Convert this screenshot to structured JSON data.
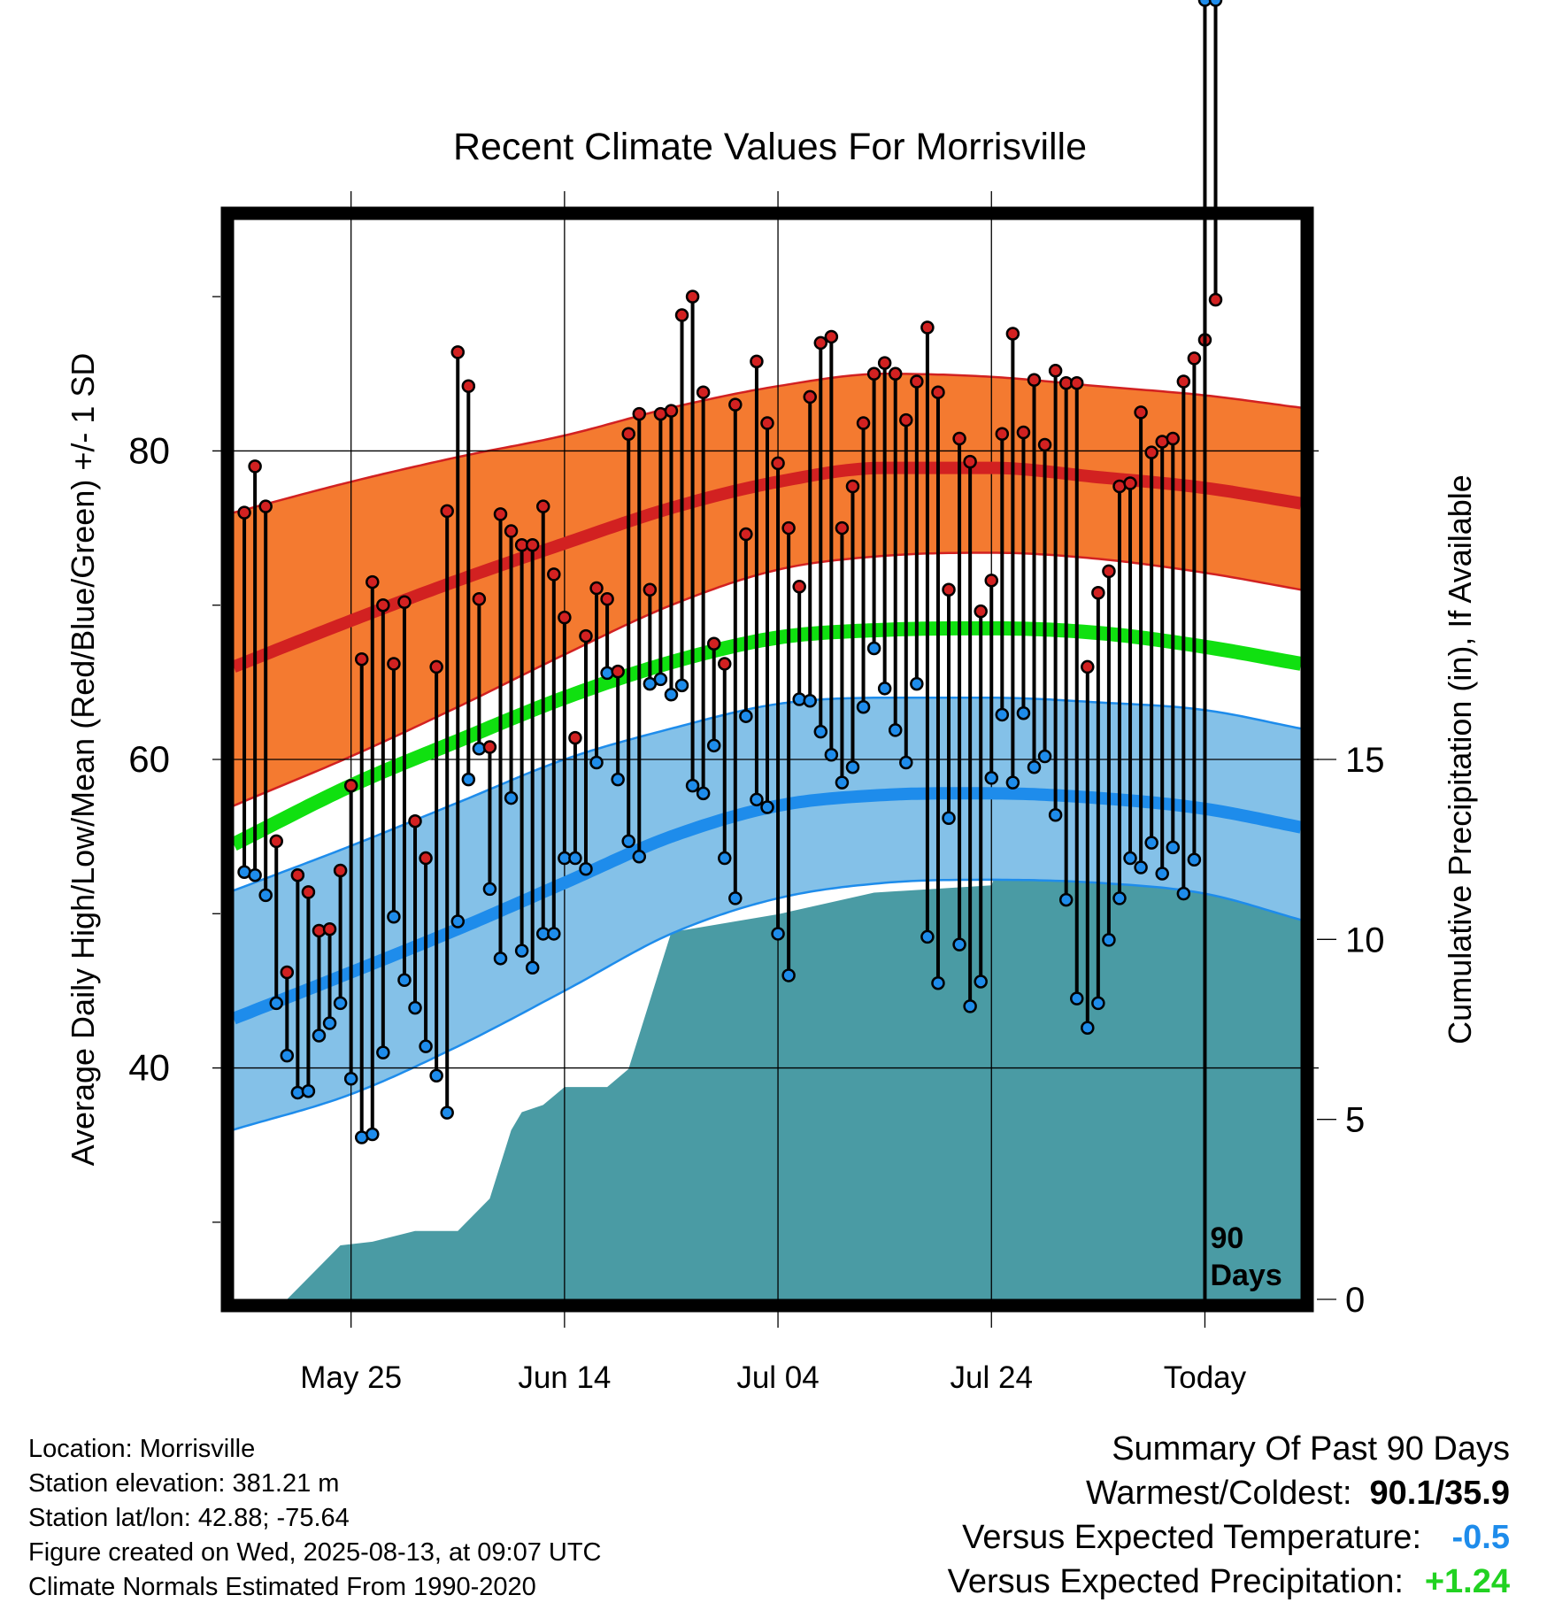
{
  "chart_data": {
    "type": "line",
    "title": "Recent Climate Values For Morrisville",
    "xlabel": "Day",
    "ylabel": "Average Daily High/Low/Mean (Red/Blue/Green) +/- 1 SD",
    "y2label": "Cumulative Precipitation (in), If Available",
    "x_tick_labels": [
      "May 25",
      "Jun 14",
      "Jul 04",
      "Jul 24",
      "Today"
    ],
    "x_range_days": [
      -91,
      9
    ],
    "x_tick_days": [
      -80,
      -60,
      -40,
      -20,
      0
    ],
    "ylim": [
      25,
      95
    ],
    "y_ticks": [
      40,
      60,
      80
    ],
    "y_minor_ticks": [
      30,
      50,
      70,
      90
    ],
    "y2lim": [
      0,
      30
    ],
    "y2_ticks": [
      0,
      5,
      10,
      15
    ],
    "grid": true,
    "today_marker_label": [
      "90",
      "Days"
    ],
    "normals": {
      "day": [
        -91,
        -80,
        -70,
        -60,
        -50,
        -40,
        -30,
        -20,
        -10,
        0,
        9
      ],
      "high_mean": [
        66.0,
        69.0,
        71.6,
        74.0,
        76.3,
        78.0,
        78.9,
        78.9,
        78.3,
        77.6,
        76.6
      ],
      "high_upper": [
        76.0,
        78.0,
        79.6,
        81.0,
        82.8,
        84.2,
        85.0,
        84.8,
        84.2,
        83.6,
        82.8
      ],
      "high_lower": [
        57.0,
        60.2,
        63.4,
        66.8,
        70.0,
        72.3,
        73.2,
        73.4,
        73.0,
        72.1,
        71.0
      ],
      "mean_mean": [
        54.5,
        58.3,
        61.2,
        64.0,
        66.3,
        67.9,
        68.4,
        68.5,
        68.2,
        67.3,
        66.2
      ],
      "low_mean": [
        43.2,
        46.2,
        49.0,
        52.0,
        55.0,
        57.0,
        57.7,
        57.8,
        57.5,
        56.8,
        55.6
      ],
      "low_upper": [
        51.5,
        54.4,
        57.2,
        60.0,
        62.0,
        63.6,
        64.0,
        64.0,
        63.7,
        63.2,
        62.0
      ],
      "low_lower": [
        36.0,
        38.3,
        41.4,
        45.0,
        48.7,
        51.0,
        52.0,
        52.2,
        52.0,
        51.3,
        49.6
      ]
    },
    "series": [
      {
        "name": "High",
        "color": "#d22121",
        "values": [
          76,
          79,
          76.4,
          54.7,
          46.2,
          52.5,
          51.4,
          48.9,
          49,
          52.8,
          58.3,
          66.5,
          71.5,
          70,
          66.2,
          70.2,
          56,
          53.6,
          66,
          76.1,
          86.4,
          84.2,
          70.4,
          60.8,
          75.9,
          74.8,
          73.9,
          73.9,
          76.4,
          72,
          69.2,
          61.4,
          68,
          71.1,
          70.4,
          65.7,
          81.1,
          82.4,
          71,
          82.4,
          82.6,
          88.8,
          90,
          83.8,
          67.5,
          66.2,
          83,
          74.6,
          85.8,
          81.8,
          79.2,
          75,
          71.2,
          83.5,
          87,
          87.4,
          75,
          77.7,
          81.8,
          85,
          85.7,
          85,
          82,
          84.5,
          88,
          83.8,
          71,
          80.8,
          79.3,
          69.6,
          71.6,
          81.1,
          87.6,
          81.2,
          84.6,
          80.4,
          85.2,
          84.4,
          84.4,
          66,
          70.8,
          72.2,
          77.7,
          77.9,
          82.5,
          79.9,
          80.6,
          80.8,
          84.5,
          86,
          87.2,
          89.8
        ]
      },
      {
        "name": "Low",
        "color": "#1e8ceb",
        "values": [
          52.7,
          52.5,
          51.2,
          44.2,
          40.8,
          38.4,
          38.5,
          42.1,
          42.9,
          44.2,
          39.3,
          35.5,
          35.7,
          41,
          49.8,
          45.7,
          43.9,
          41.4,
          39.5,
          37.1,
          49.5,
          58.7,
          60.7,
          51.6,
          47.1,
          57.5,
          47.6,
          46.5,
          48.7,
          48.7,
          53.6,
          53.6,
          52.9,
          59.8,
          65.6,
          58.7,
          54.7,
          53.7,
          64.9,
          65.2,
          64.2,
          64.8,
          58.3,
          57.8,
          60.9,
          53.6,
          51,
          62.8,
          57.4,
          56.9,
          48.7,
          46,
          63.9,
          63.8,
          61.8,
          60.3,
          58.5,
          59.5,
          63.4,
          67.2,
          64.6,
          61.9,
          59.8,
          64.9,
          48.5,
          45.5,
          56.2,
          48,
          44,
          45.6,
          58.8,
          62.9,
          58.5,
          63,
          59.5,
          60.2,
          56.4,
          50.9,
          44.5,
          42.6,
          44.2,
          48.3,
          51,
          53.6,
          53,
          54.6,
          52.6,
          54.3,
          51.3,
          53.5
        ]
      },
      {
        "name": "Precipitation",
        "color": "#4a9ba4",
        "day": [
          -91,
          -86,
          -84,
          -81,
          -78,
          -74,
          -70,
          -67,
          -65,
          -64,
          -62,
          -60,
          -56,
          -54,
          -50,
          -44,
          -40,
          -31,
          -20,
          -18,
          -16,
          -13,
          -9,
          9
        ],
        "values": [
          0,
          0,
          0.6,
          1.5,
          1.6,
          1.9,
          1.9,
          2.8,
          4.7,
          5.2,
          5.4,
          5.9,
          5.9,
          6.4,
          10.2,
          10.5,
          10.7,
          11.3,
          11.5,
          13.1,
          13.3,
          14.1,
          14.1,
          14.1
        ]
      }
    ]
  },
  "info": {
    "location": "Location: Morrisville",
    "elevation": "Station elevation: 381.21 m",
    "latlon": "Station lat/lon: 42.88; -75.64",
    "created": "Figure created on Wed, 2025-08-13, at 09:07 UTC",
    "normals_note": "Climate Normals Estimated From 1990-2020"
  },
  "summary": {
    "heading": "Summary Of Past 90 Days",
    "warmest_label": "Warmest/Coldest:",
    "warmest_value": "90.1/35.9",
    "temp_label": "Versus Expected Temperature:",
    "temp_value": "-0.5",
    "temp_color": "#1e8ceb",
    "precip_label": "Versus Expected Precipitation:",
    "precip_value": "+1.24",
    "precip_color": "#21d221"
  },
  "colors": {
    "high_band": "#f47a30",
    "high_line": "#d22121",
    "mean_line": "#10e010",
    "low_band": "#84c1e8",
    "low_line": "#1e8ceb",
    "precip_fill": "#4a9ba4"
  }
}
